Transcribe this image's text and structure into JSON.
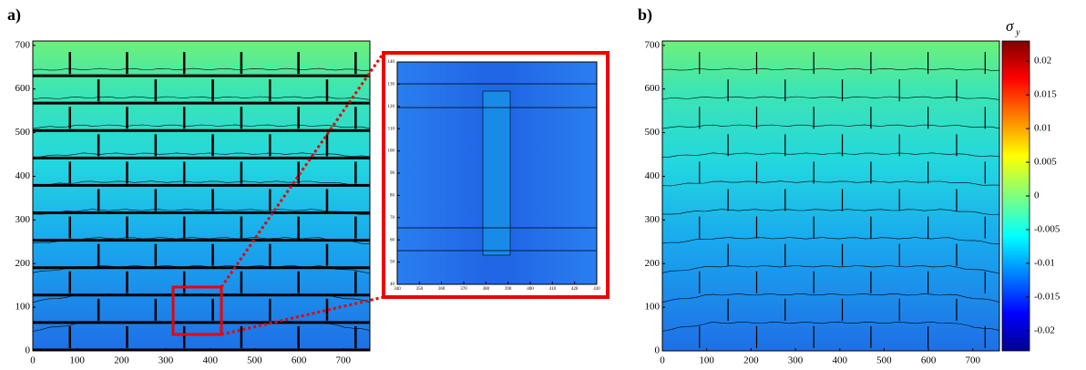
{
  "chart_data": [
    {
      "type": "contour",
      "title": "a)",
      "xlim": [
        0,
        760
      ],
      "ylim": [
        0,
        710
      ],
      "xticks": [
        0,
        100,
        200,
        300,
        400,
        500,
        600,
        700
      ],
      "yticks": [
        0,
        100,
        200,
        300,
        400,
        500,
        600,
        700
      ]
    },
    {
      "type": "contour",
      "xlim": [
        340,
        430
      ],
      "ylim": [
        40,
        140
      ],
      "xticks": [
        340,
        350,
        360,
        370,
        380,
        390,
        400,
        410,
        420,
        430
      ],
      "yticks": [
        40,
        50,
        60,
        70,
        80,
        90,
        100,
        110,
        120,
        130,
        140
      ]
    },
    {
      "type": "contour",
      "title": "b)",
      "xlim": [
        0,
        760
      ],
      "ylim": [
        0,
        710
      ],
      "xticks": [
        0,
        100,
        200,
        300,
        400,
        500,
        600,
        700
      ],
      "yticks": [
        0,
        100,
        200,
        300,
        400,
        500,
        600,
        700
      ],
      "colorbar_label": "σ",
      "colorbar_label_sub": "y",
      "colorbar_lim": [
        -0.023,
        0.023
      ],
      "colorbar_ticks": [
        0.02,
        0.015,
        0.01,
        0.005,
        0,
        -0.005,
        -0.01,
        -0.015,
        -0.02
      ]
    }
  ]
}
